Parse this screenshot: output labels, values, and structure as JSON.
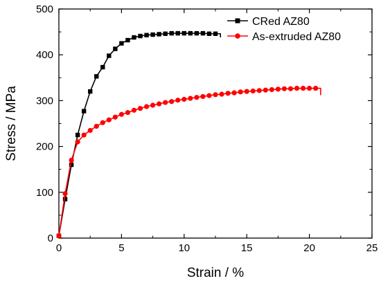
{
  "chart_data": {
    "type": "line",
    "xlabel": "Strain / %",
    "ylabel": "Stress / MPa",
    "xlim": [
      0,
      25
    ],
    "ylim": [
      0,
      500
    ],
    "xticks": [
      0,
      5,
      10,
      15,
      20,
      25
    ],
    "yticks": [
      0,
      100,
      200,
      300,
      400,
      500
    ],
    "grid": false,
    "legend_position": "top-right",
    "series": [
      {
        "name": "CRed AZ80",
        "color": "#000000",
        "marker": "square",
        "end_x": 12.9,
        "end_drop": 8,
        "x": [
          0,
          0.5,
          1.0,
          1.5,
          2.0,
          2.5,
          3.0,
          3.5,
          4.0,
          4.5,
          5.0,
          5.5,
          6.0,
          6.5,
          7.0,
          7.5,
          8.0,
          8.5,
          9.0,
          9.5,
          10.0,
          10.5,
          11.0,
          11.5,
          12.0,
          12.5
        ],
        "y": [
          5,
          85,
          160,
          225,
          277,
          320,
          353,
          373,
          398,
          413,
          425,
          432,
          438,
          441,
          443,
          444,
          445,
          446,
          447,
          447,
          447,
          447,
          447,
          447,
          446,
          446
        ]
      },
      {
        "name": "As-extruded AZ80",
        "color": "#ff0000",
        "marker": "circle",
        "end_x": 20.9,
        "end_drop": 15,
        "x": [
          0,
          0.5,
          1.0,
          1.5,
          2.0,
          2.5,
          3.0,
          3.5,
          4.0,
          4.5,
          5.0,
          5.5,
          6.0,
          6.5,
          7.0,
          7.5,
          8.0,
          8.5,
          9.0,
          9.5,
          10.0,
          10.5,
          11.0,
          11.5,
          12.0,
          12.5,
          13.0,
          13.5,
          14.0,
          14.5,
          15.0,
          15.5,
          16.0,
          16.5,
          17.0,
          17.5,
          18.0,
          18.5,
          19.0,
          19.5,
          20.0,
          20.5
        ],
        "y": [
          5,
          97,
          170,
          210,
          225,
          235,
          244,
          252,
          258,
          264,
          270,
          274,
          279,
          283,
          287,
          290,
          293,
          296,
          298,
          301,
          303,
          305,
          307,
          309,
          311,
          313,
          314,
          316,
          317,
          319,
          320,
          321,
          322,
          323,
          324,
          325,
          326,
          326,
          327,
          327,
          327,
          327
        ]
      }
    ]
  }
}
